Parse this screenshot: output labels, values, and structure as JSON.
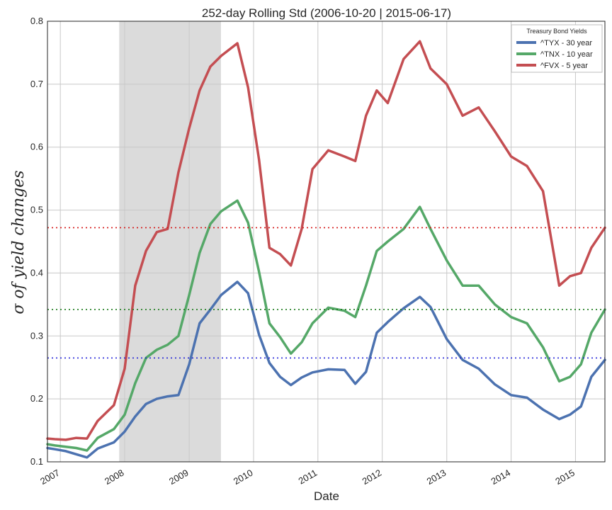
{
  "chart_data": {
    "type": "line",
    "title": "252-day Rolling Std (2006-10-20 | 2015-06-17)",
    "xlabel": "Date",
    "ylabel": "σ of yield changes",
    "xlim": [
      "2006-10-20",
      "2015-06-17"
    ],
    "ylim": [
      0.1,
      0.8
    ],
    "yticks": [
      "0.1",
      "0.2",
      "0.3",
      "0.4",
      "0.5",
      "0.6",
      "0.7",
      "0.8"
    ],
    "xticks": [
      "2007",
      "2008",
      "2009",
      "2010",
      "2011",
      "2012",
      "2013",
      "2014",
      "2015"
    ],
    "grid": true,
    "shaded_region": {
      "start": "2007-12-01",
      "end": "2009-06-30",
      "color": "#d9d9d9"
    },
    "legend": {
      "title": "Treasury Bond Yields",
      "position": "top-right"
    },
    "series": [
      {
        "name": "^TYX - 30 year",
        "color": "#4c72b0",
        "mean": 0.265,
        "points": [
          [
            "2006-10-20",
            0.122
          ],
          [
            "2006-12-01",
            0.12
          ],
          [
            "2007-02-01",
            0.117
          ],
          [
            "2007-04-01",
            0.112
          ],
          [
            "2007-06-01",
            0.107
          ],
          [
            "2007-08-01",
            0.121
          ],
          [
            "2007-11-01",
            0.131
          ],
          [
            "2008-01-01",
            0.148
          ],
          [
            "2008-03-01",
            0.172
          ],
          [
            "2008-05-01",
            0.192
          ],
          [
            "2008-07-01",
            0.2
          ],
          [
            "2008-09-01",
            0.204
          ],
          [
            "2008-11-01",
            0.206
          ],
          [
            "2009-01-01",
            0.255
          ],
          [
            "2009-03-01",
            0.32
          ],
          [
            "2009-05-01",
            0.342
          ],
          [
            "2009-07-01",
            0.365
          ],
          [
            "2009-10-01",
            0.386
          ],
          [
            "2009-12-01",
            0.368
          ],
          [
            "2010-02-01",
            0.302
          ],
          [
            "2010-04-01",
            0.257
          ],
          [
            "2010-06-01",
            0.235
          ],
          [
            "2010-08-01",
            0.222
          ],
          [
            "2010-10-01",
            0.234
          ],
          [
            "2010-12-01",
            0.242
          ],
          [
            "2011-03-01",
            0.247
          ],
          [
            "2011-06-01",
            0.246
          ],
          [
            "2011-08-01",
            0.224
          ],
          [
            "2011-10-01",
            0.243
          ],
          [
            "2011-12-01",
            0.305
          ],
          [
            "2012-02-01",
            0.322
          ],
          [
            "2012-05-01",
            0.344
          ],
          [
            "2012-08-01",
            0.362
          ],
          [
            "2012-10-01",
            0.346
          ],
          [
            "2013-01-01",
            0.295
          ],
          [
            "2013-04-01",
            0.262
          ],
          [
            "2013-07-01",
            0.248
          ],
          [
            "2013-10-01",
            0.223
          ],
          [
            "2014-01-01",
            0.206
          ],
          [
            "2014-04-01",
            0.202
          ],
          [
            "2014-07-01",
            0.183
          ],
          [
            "2014-10-01",
            0.168
          ],
          [
            "2014-12-01",
            0.175
          ],
          [
            "2015-02-01",
            0.188
          ],
          [
            "2015-04-01",
            0.235
          ],
          [
            "2015-06-17",
            0.262
          ]
        ]
      },
      {
        "name": "^TNX - 10 year",
        "color": "#55a868",
        "mean": 0.342,
        "points": [
          [
            "2006-10-20",
            0.128
          ],
          [
            "2006-12-01",
            0.126
          ],
          [
            "2007-02-01",
            0.124
          ],
          [
            "2007-04-01",
            0.122
          ],
          [
            "2007-06-01",
            0.118
          ],
          [
            "2007-08-01",
            0.138
          ],
          [
            "2007-11-01",
            0.152
          ],
          [
            "2008-01-01",
            0.175
          ],
          [
            "2008-03-01",
            0.225
          ],
          [
            "2008-05-01",
            0.265
          ],
          [
            "2008-07-01",
            0.278
          ],
          [
            "2008-09-01",
            0.286
          ],
          [
            "2008-11-01",
            0.3
          ],
          [
            "2009-01-01",
            0.365
          ],
          [
            "2009-03-01",
            0.432
          ],
          [
            "2009-05-01",
            0.478
          ],
          [
            "2009-07-01",
            0.498
          ],
          [
            "2009-10-01",
            0.515
          ],
          [
            "2009-12-01",
            0.48
          ],
          [
            "2010-02-01",
            0.402
          ],
          [
            "2010-04-01",
            0.32
          ],
          [
            "2010-06-01",
            0.298
          ],
          [
            "2010-08-01",
            0.272
          ],
          [
            "2010-10-01",
            0.29
          ],
          [
            "2010-12-01",
            0.32
          ],
          [
            "2011-03-01",
            0.345
          ],
          [
            "2011-06-01",
            0.34
          ],
          [
            "2011-08-01",
            0.33
          ],
          [
            "2011-10-01",
            0.38
          ],
          [
            "2011-12-01",
            0.435
          ],
          [
            "2012-02-01",
            0.45
          ],
          [
            "2012-05-01",
            0.47
          ],
          [
            "2012-08-01",
            0.505
          ],
          [
            "2012-10-01",
            0.47
          ],
          [
            "2013-01-01",
            0.42
          ],
          [
            "2013-04-01",
            0.38
          ],
          [
            "2013-07-01",
            0.38
          ],
          [
            "2013-10-01",
            0.35
          ],
          [
            "2014-01-01",
            0.33
          ],
          [
            "2014-04-01",
            0.32
          ],
          [
            "2014-07-01",
            0.282
          ],
          [
            "2014-10-01",
            0.228
          ],
          [
            "2014-12-01",
            0.235
          ],
          [
            "2015-02-01",
            0.255
          ],
          [
            "2015-04-01",
            0.305
          ],
          [
            "2015-06-17",
            0.342
          ]
        ]
      },
      {
        "name": "^FVX - 5 year",
        "color": "#c44e52",
        "mean": 0.472,
        "points": [
          [
            "2006-10-20",
            0.137
          ],
          [
            "2006-12-01",
            0.136
          ],
          [
            "2007-02-01",
            0.135
          ],
          [
            "2007-04-01",
            0.138
          ],
          [
            "2007-06-01",
            0.137
          ],
          [
            "2007-08-01",
            0.165
          ],
          [
            "2007-11-01",
            0.19
          ],
          [
            "2008-01-01",
            0.248
          ],
          [
            "2008-03-01",
            0.38
          ],
          [
            "2008-05-01",
            0.435
          ],
          [
            "2008-07-01",
            0.465
          ],
          [
            "2008-09-01",
            0.47
          ],
          [
            "2008-11-01",
            0.56
          ],
          [
            "2009-01-01",
            0.63
          ],
          [
            "2009-03-01",
            0.69
          ],
          [
            "2009-05-01",
            0.728
          ],
          [
            "2009-07-01",
            0.745
          ],
          [
            "2009-10-01",
            0.765
          ],
          [
            "2009-12-01",
            0.695
          ],
          [
            "2010-02-01",
            0.58
          ],
          [
            "2010-04-01",
            0.44
          ],
          [
            "2010-06-01",
            0.43
          ],
          [
            "2010-08-01",
            0.412
          ],
          [
            "2010-10-01",
            0.47
          ],
          [
            "2010-12-01",
            0.565
          ],
          [
            "2011-03-01",
            0.595
          ],
          [
            "2011-06-01",
            0.585
          ],
          [
            "2011-08-01",
            0.578
          ],
          [
            "2011-10-01",
            0.65
          ],
          [
            "2011-12-01",
            0.69
          ],
          [
            "2012-02-01",
            0.67
          ],
          [
            "2012-05-01",
            0.74
          ],
          [
            "2012-08-01",
            0.768
          ],
          [
            "2012-10-01",
            0.725
          ],
          [
            "2013-01-01",
            0.7
          ],
          [
            "2013-04-01",
            0.65
          ],
          [
            "2013-07-01",
            0.663
          ],
          [
            "2013-10-01",
            0.625
          ],
          [
            "2014-01-01",
            0.585
          ],
          [
            "2014-04-01",
            0.57
          ],
          [
            "2014-07-01",
            0.53
          ],
          [
            "2014-10-01",
            0.38
          ],
          [
            "2014-12-01",
            0.395
          ],
          [
            "2015-02-01",
            0.4
          ],
          [
            "2015-04-01",
            0.44
          ],
          [
            "2015-06-17",
            0.472
          ]
        ]
      }
    ]
  }
}
